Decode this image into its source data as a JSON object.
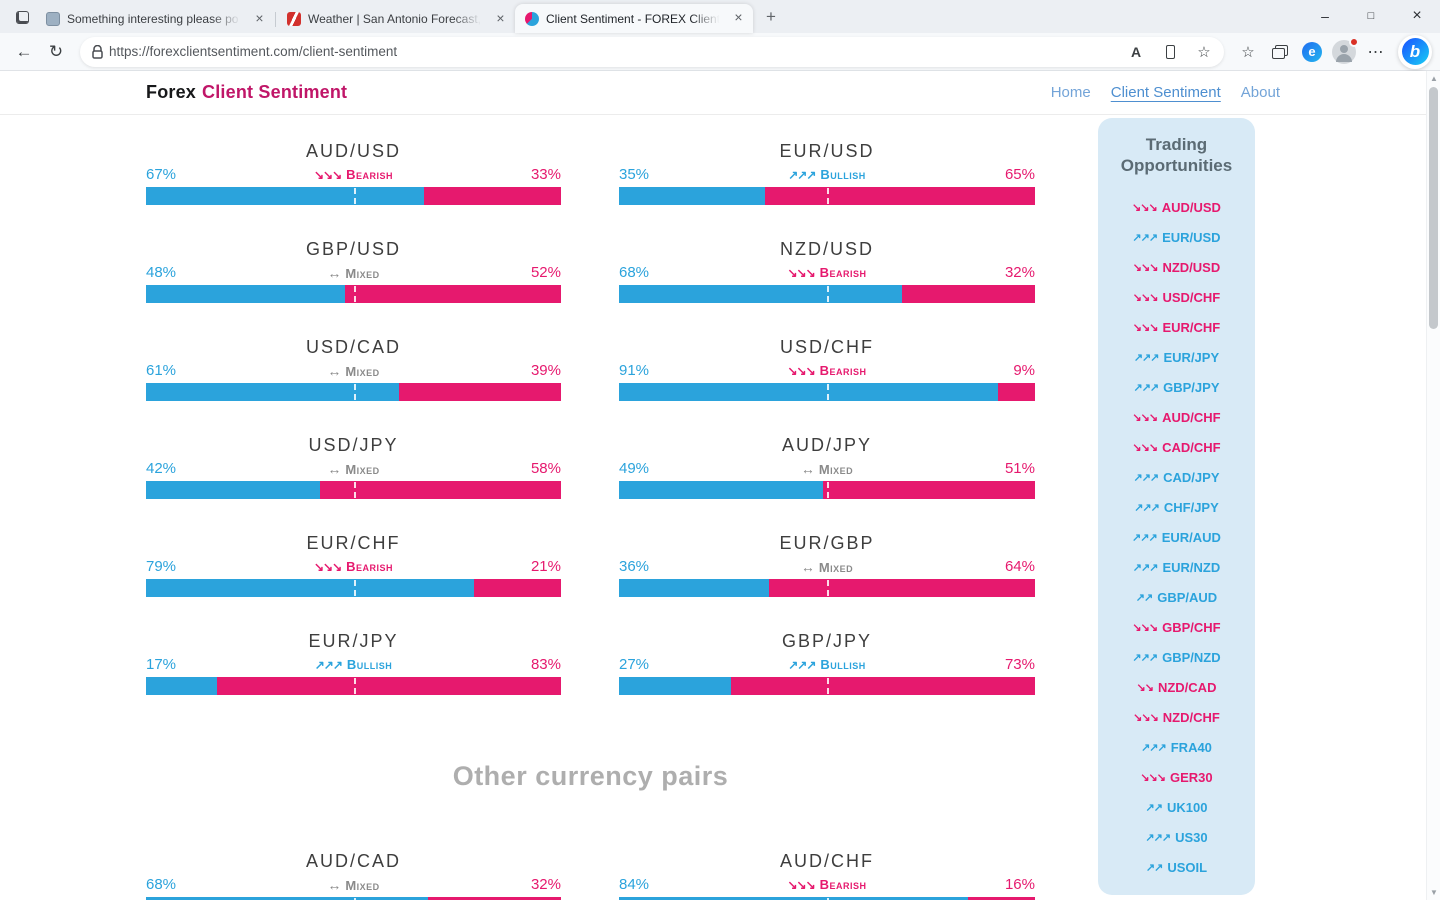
{
  "icons": {
    "close": "×",
    "new_tab": "+",
    "minimize": "–",
    "maximize": "□",
    "window_close": "×",
    "back": "←",
    "refresh": "↻",
    "read_aloud": "A",
    "favorite_star": "☆",
    "ellipsis": "⋯",
    "editor_e": "e",
    "bing": "b",
    "scroll_up": "▲",
    "scroll_down": "▼"
  },
  "browser": {
    "tabs": [
      {
        "title": "Something interesting please po"
      },
      {
        "title": "Weather | San Antonio Forecast,"
      },
      {
        "title": "Client Sentiment - FOREX Client "
      }
    ],
    "url": "https://forexclientsentiment.com/client-sentiment"
  },
  "header": {
    "brand_primary": "Forex",
    "brand_secondary": "Client Sentiment",
    "nav": [
      {
        "label": "Home"
      },
      {
        "label": "Client Sentiment"
      },
      {
        "label": "About"
      }
    ]
  },
  "pairs": [
    {
      "pair": "AUD/USD",
      "left_label": "67%",
      "right_label": "33%",
      "left_pct": 67,
      "dir": "bearish",
      "arrows": "↘↘↘",
      "sentiment": "Bearish"
    },
    {
      "pair": "EUR/USD",
      "left_label": "35%",
      "right_label": "65%",
      "left_pct": 35,
      "dir": "bullish",
      "arrows": "↗↗↗",
      "sentiment": "Bullish"
    },
    {
      "pair": "GBP/USD",
      "left_label": "48%",
      "right_label": "52%",
      "left_pct": 48,
      "dir": "mixed",
      "arrows": "↔",
      "sentiment": "Mixed"
    },
    {
      "pair": "NZD/USD",
      "left_label": "68%",
      "right_label": "32%",
      "left_pct": 68,
      "dir": "bearish",
      "arrows": "↘↘↘",
      "sentiment": "Bearish"
    },
    {
      "pair": "USD/CAD",
      "left_label": "61%",
      "right_label": "39%",
      "left_pct": 61,
      "dir": "mixed",
      "arrows": "↔",
      "sentiment": "Mixed"
    },
    {
      "pair": "USD/CHF",
      "left_label": "91%",
      "right_label": "9%",
      "left_pct": 91,
      "dir": "bearish",
      "arrows": "↘↘↘",
      "sentiment": "Bearish"
    },
    {
      "pair": "USD/JPY",
      "left_label": "42%",
      "right_label": "58%",
      "left_pct": 42,
      "dir": "mixed",
      "arrows": "↔",
      "sentiment": "Mixed"
    },
    {
      "pair": "AUD/JPY",
      "left_label": "49%",
      "right_label": "51%",
      "left_pct": 49,
      "dir": "mixed",
      "arrows": "↔",
      "sentiment": "Mixed"
    },
    {
      "pair": "EUR/CHF",
      "left_label": "79%",
      "right_label": "21%",
      "left_pct": 79,
      "dir": "bearish",
      "arrows": "↘↘↘",
      "sentiment": "Bearish"
    },
    {
      "pair": "EUR/GBP",
      "left_label": "36%",
      "right_label": "64%",
      "left_pct": 36,
      "dir": "mixed",
      "arrows": "↔",
      "sentiment": "Mixed"
    },
    {
      "pair": "EUR/JPY",
      "left_label": "17%",
      "right_label": "83%",
      "left_pct": 17,
      "dir": "bullish",
      "arrows": "↗↗↗",
      "sentiment": "Bullish"
    },
    {
      "pair": "GBP/JPY",
      "left_label": "27%",
      "right_label": "73%",
      "left_pct": 27,
      "dir": "bullish",
      "arrows": "↗↗↗",
      "sentiment": "Bullish"
    }
  ],
  "other_section": {
    "heading": "Other currency pairs",
    "pairs": [
      {
        "pair": "AUD/CAD",
        "left_label": "68%",
        "right_label": "32%",
        "left_pct": 68,
        "dir": "mixed",
        "arrows": "↔",
        "sentiment": "Mixed"
      },
      {
        "pair": "AUD/CHF",
        "left_label": "84%",
        "right_label": "16%",
        "left_pct": 84,
        "dir": "bearish",
        "arrows": "↘↘↘",
        "sentiment": "Bearish"
      }
    ]
  },
  "sidebar": {
    "title": "Trading Opportunities",
    "items": [
      {
        "pair": "AUD/USD",
        "dir": "bearish",
        "arrows": "↘↘↘"
      },
      {
        "pair": "EUR/USD",
        "dir": "bullish",
        "arrows": "↗↗↗"
      },
      {
        "pair": "NZD/USD",
        "dir": "bearish",
        "arrows": "↘↘↘"
      },
      {
        "pair": "USD/CHF",
        "dir": "bearish",
        "arrows": "↘↘↘"
      },
      {
        "pair": "EUR/CHF",
        "dir": "bearish",
        "arrows": "↘↘↘"
      },
      {
        "pair": "EUR/JPY",
        "dir": "bullish",
        "arrows": "↗↗↗"
      },
      {
        "pair": "GBP/JPY",
        "dir": "bullish",
        "arrows": "↗↗↗"
      },
      {
        "pair": "AUD/CHF",
        "dir": "bearish",
        "arrows": "↘↘↘"
      },
      {
        "pair": "CAD/CHF",
        "dir": "bearish",
        "arrows": "↘↘↘"
      },
      {
        "pair": "CAD/JPY",
        "dir": "bullish",
        "arrows": "↗↗↗"
      },
      {
        "pair": "CHF/JPY",
        "dir": "bullish",
        "arrows": "↗↗↗"
      },
      {
        "pair": "EUR/AUD",
        "dir": "bullish",
        "arrows": "↗↗↗"
      },
      {
        "pair": "EUR/NZD",
        "dir": "bullish",
        "arrows": "↗↗↗"
      },
      {
        "pair": "GBP/AUD",
        "dir": "bullish",
        "arrows": "↗↗"
      },
      {
        "pair": "GBP/CHF",
        "dir": "bearish",
        "arrows": "↘↘↘"
      },
      {
        "pair": "GBP/NZD",
        "dir": "bullish",
        "arrows": "↗↗↗"
      },
      {
        "pair": "NZD/CAD",
        "dir": "bearish",
        "arrows": "↘↘"
      },
      {
        "pair": "NZD/CHF",
        "dir": "bearish",
        "arrows": "↘↘↘"
      },
      {
        "pair": "FRA40",
        "dir": "bullish",
        "arrows": "↗↗↗"
      },
      {
        "pair": "GER30",
        "dir": "bearish",
        "arrows": "↘↘↘"
      },
      {
        "pair": "UK100",
        "dir": "bullish",
        "arrows": "↗↗"
      },
      {
        "pair": "US30",
        "dir": "bullish",
        "arrows": "↗↗↗"
      },
      {
        "pair": "USOIL",
        "dir": "bullish",
        "arrows": "↗↗"
      }
    ]
  },
  "colors": {
    "bullish_blue": "#2BA3DC",
    "bearish_pink": "#E6196E",
    "mixed_gray": "#8A8A8A",
    "brand_magenta": "#C01668",
    "sidebar_bg": "#D8EAF6"
  }
}
